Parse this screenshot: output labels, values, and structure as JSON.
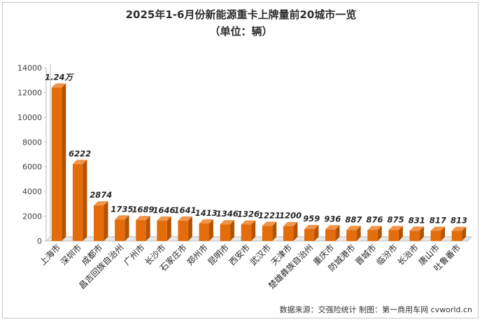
{
  "chart_data": {
    "type": "bar",
    "title": "2025年1-6月份新能源重卡上牌量前20城市一览",
    "subtitle": "（单位：辆）",
    "categories": [
      "上海市",
      "深圳市",
      "成都市",
      "昌吉回族自治州",
      "广州市",
      "长沙市",
      "石家庄市",
      "郑州市",
      "昆明市",
      "西安市",
      "武汉市",
      "天津市",
      "楚雄彝族自治州",
      "重庆市",
      "防城港市",
      "晋城市",
      "临汾市",
      "长治市",
      "唐山市",
      "吐鲁番市"
    ],
    "values": [
      12400,
      6222,
      2874,
      1735,
      1689,
      1646,
      1641,
      1413,
      1346,
      1326,
      1221,
      1200,
      959,
      936,
      887,
      876,
      875,
      831,
      817,
      813
    ],
    "data_labels": [
      "1.24万",
      "6222",
      "2874",
      "1735",
      "1689",
      "1646",
      "1641",
      "1413",
      "1346",
      "1326",
      "1221",
      "1200",
      "959",
      "936",
      "887",
      "876",
      "875",
      "831",
      "817",
      "813"
    ],
    "yticks": [
      "0",
      "2000",
      "4000",
      "6000",
      "8000",
      "10000",
      "12000",
      "14000"
    ],
    "ylim": [
      0,
      14000
    ],
    "xlabel": "",
    "ylabel": "",
    "grid": false,
    "bar_color": "#e46c0a",
    "bar_side_color": "#b35300",
    "bar_top_color": "#f0944a"
  },
  "source_note": "数据来源：交强险统计   制图：第一商用车网 cvworld.cn"
}
